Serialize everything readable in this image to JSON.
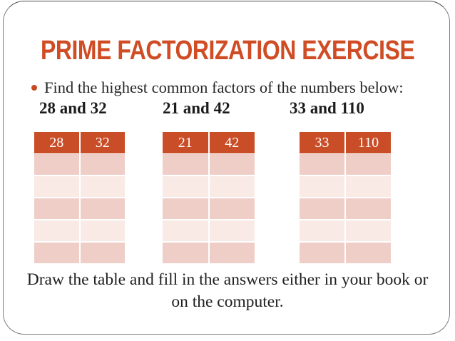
{
  "slide": {
    "title": "PRIME FACTORIZATION EXERCISE",
    "bullet": {
      "icon": "bullet-dot-icon",
      "text": "Find the highest common factors of the numbers below:"
    },
    "problems": [
      {
        "label": "28 and 32",
        "headers": [
          "28",
          "32"
        ],
        "empty_rows": 5
      },
      {
        "label": "21 and 42",
        "headers": [
          "21",
          "42"
        ],
        "empty_rows": 5
      },
      {
        "label": "33 and 110",
        "headers": [
          "33",
          "110"
        ],
        "empty_rows": 5
      }
    ],
    "footer_lines": [
      "Draw the table and fill in the answers either in your book or",
      "on the computer."
    ],
    "colors": {
      "accent_orange": "#c94d27",
      "title_orange": "#d04c24",
      "row_dark_pink": "#efcec8",
      "row_light_pink": "#f9eae6",
      "frame_border_gray": "#7d7d7d",
      "body_text": "#1f1f1f"
    }
  }
}
